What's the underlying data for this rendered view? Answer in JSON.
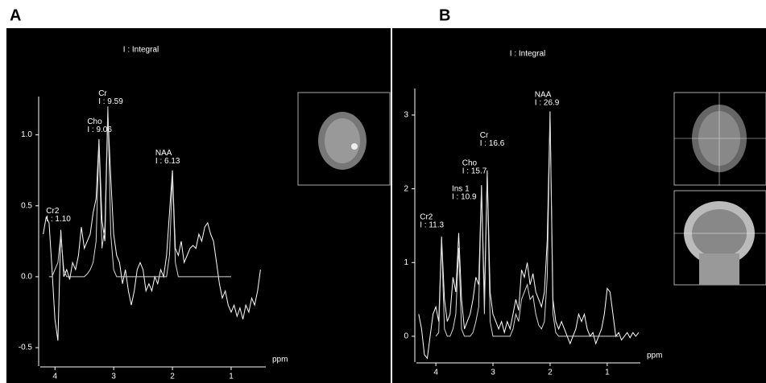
{
  "chart_data": [
    {
      "type": "line",
      "panel": "A",
      "title": "I : Integral",
      "x_label": "ppm",
      "x": [
        4.2,
        4.15,
        4.1,
        4.05,
        4,
        3.95,
        3.9,
        3.85,
        3.8,
        3.75,
        3.7,
        3.65,
        3.6,
        3.55,
        3.5,
        3.45,
        3.4,
        3.35,
        3.3,
        3.25,
        3.2,
        3.15,
        3.1,
        3.05,
        3,
        2.95,
        2.9,
        2.85,
        2.8,
        2.75,
        2.7,
        2.65,
        2.6,
        2.55,
        2.5,
        2.45,
        2.4,
        2.35,
        2.3,
        2.25,
        2.2,
        2.15,
        2.1,
        2.05,
        2,
        1.95,
        1.9,
        1.85,
        1.8,
        1.75,
        1.7,
        1.65,
        1.6,
        1.55,
        1.5,
        1.45,
        1.4,
        1.35,
        1.3,
        1.25,
        1.2,
        1.15,
        1.1,
        1.05,
        1,
        0.95,
        0.9,
        0.85,
        0.8,
        0.75,
        0.7,
        0.65,
        0.6,
        0.55,
        0.5
      ],
      "series": [
        {
          "color": "#ffffff",
          "values": [
            0.3,
            0.42,
            0.38,
            0.05,
            -0.3,
            -0.45,
            0.33,
            0,
            0.05,
            -0.02,
            0.1,
            0.05,
            0.15,
            0.35,
            0.2,
            0.25,
            0.3,
            0.45,
            0.55,
            0.97,
            0.4,
            0.25,
            1.15,
            0.7,
            0.3,
            0.15,
            0.1,
            -0.05,
            0.05,
            -0.1,
            -0.2,
            -0.1,
            0.05,
            0.1,
            0.05,
            -0.1,
            -0.05,
            -0.1,
            0,
            -0.05,
            0.05,
            0,
            0.15,
            0.45,
            0.75,
            0.2,
            0.15,
            0.25,
            0.1,
            0.15,
            0.2,
            0.22,
            0.2,
            0.3,
            0.25,
            0.35,
            0.38,
            0.3,
            0.25,
            0.1,
            -0.05,
            -0.15,
            -0.1,
            -0.2,
            -0.25,
            -0.2,
            -0.28,
            -0.22,
            -0.3,
            -0.2,
            -0.25,
            -0.15,
            -0.2,
            -0.1,
            0.05
          ]
        },
        {
          "color": "#d8d8d8",
          "values": [
            null,
            null,
            0,
            0,
            0.05,
            0.1,
            0.3,
            0.05,
            0,
            0,
            0,
            0,
            0,
            0,
            0,
            0.02,
            0.05,
            0.1,
            0.25,
            0.95,
            0.2,
            0.35,
            1.2,
            0.3,
            0.05,
            0,
            0,
            0,
            0,
            0,
            0,
            0,
            0,
            0,
            0,
            0,
            0,
            0,
            0,
            0,
            0,
            0,
            0,
            0.15,
            0.72,
            0.1,
            0,
            0,
            0,
            0,
            0,
            0,
            0,
            0,
            0,
            0,
            0,
            0,
            0,
            0,
            0,
            0,
            0,
            0,
            0,
            null,
            null,
            null,
            null,
            null,
            null,
            null,
            null,
            null,
            null
          ]
        }
      ],
      "xlim": [
        4.25,
        0.41
      ],
      "xticks": [
        4,
        3,
        2,
        1
      ],
      "ylim": [
        -0.63,
        1.27
      ],
      "yticks": [
        -0.5,
        {
          "value": 0,
          "label": "0.0"
        },
        0.5,
        {
          "value": 1,
          "label": "1.0"
        }
      ],
      "annotations": [
        {
          "label": "Cr2",
          "integral": "I : 1.10",
          "x": 4.15,
          "y": 0.49
        },
        {
          "label": "Cho",
          "integral": "I : 9.06",
          "x": 3.45,
          "y": 1.12
        },
        {
          "label": "Cr",
          "integral": "I : 9.59",
          "x": 3.26,
          "y": 1.32
        },
        {
          "label": "NAA",
          "integral": "I : 6.13",
          "x": 2.29,
          "y": 0.9
        }
      ]
    },
    {
      "type": "line",
      "panel": "B",
      "title": "I : Integral",
      "x_label": "ppm",
      "x": [
        4.3,
        4.25,
        4.2,
        4.15,
        4.1,
        4.05,
        4,
        3.95,
        3.9,
        3.85,
        3.8,
        3.75,
        3.7,
        3.65,
        3.6,
        3.55,
        3.5,
        3.45,
        3.4,
        3.35,
        3.3,
        3.25,
        3.2,
        3.15,
        3.1,
        3.05,
        3,
        2.95,
        2.9,
        2.85,
        2.8,
        2.75,
        2.7,
        2.65,
        2.6,
        2.55,
        2.5,
        2.45,
        2.4,
        2.35,
        2.3,
        2.25,
        2.2,
        2.15,
        2.1,
        2.05,
        2,
        1.95,
        1.9,
        1.85,
        1.8,
        1.75,
        1.7,
        1.65,
        1.6,
        1.55,
        1.5,
        1.45,
        1.4,
        1.35,
        1.3,
        1.25,
        1.2,
        1.15,
        1.1,
        1.05,
        1,
        0.95,
        0.9,
        0.85,
        0.8,
        0.75,
        0.7,
        0.65,
        0.6,
        0.55,
        0.5,
        0.45
      ],
      "series": [
        {
          "color": "#ffffff",
          "values": [
            0.3,
            0.1,
            -0.25,
            -0.3,
            0,
            0.3,
            0.4,
            0.2,
            1.35,
            0.5,
            0.2,
            0.3,
            0.8,
            0.6,
            1.4,
            0.5,
            0.1,
            0.2,
            0.3,
            0.5,
            0.8,
            0.7,
            2.05,
            0.5,
            2.25,
            0.6,
            0.3,
            0.2,
            0.1,
            0.2,
            0.05,
            0.2,
            0.1,
            0.3,
            0.5,
            0.35,
            0.9,
            0.8,
            1,
            0.7,
            0.85,
            0.6,
            0.5,
            0.4,
            0.6,
            1.3,
            3.05,
            0.5,
            0.2,
            0.1,
            0.2,
            0.1,
            0,
            -0.1,
            0,
            0.1,
            0.3,
            0.2,
            0.3,
            0.1,
            0,
            0.05,
            -0.1,
            0,
            0.1,
            0.3,
            0.65,
            0.6,
            0.3,
            0,
            0.05,
            -0.05,
            0,
            0.05,
            -0.02,
            0.05,
            0,
            0.05
          ]
        },
        {
          "color": "#d8d8d8",
          "values": [
            null,
            null,
            null,
            null,
            null,
            null,
            0,
            0.05,
            1.3,
            0.1,
            0,
            0,
            0.1,
            0.3,
            1.2,
            0.1,
            0,
            0,
            0,
            0.05,
            0.2,
            0.4,
            2,
            0.3,
            2.2,
            0.2,
            0,
            0,
            0,
            0,
            0,
            0,
            0,
            0.1,
            0.3,
            0.2,
            0.5,
            0.6,
            0.7,
            0.5,
            0.55,
            0.3,
            0.15,
            0.1,
            0.2,
            0.8,
            3,
            0.3,
            0.05,
            0,
            0,
            0,
            0,
            0,
            0,
            0,
            0,
            0,
            0,
            0,
            0,
            0,
            0,
            0,
            0,
            0,
            0,
            0,
            0,
            0,
            0,
            null,
            null,
            null,
            null,
            null,
            null,
            null
          ]
        }
      ],
      "xlim": [
        4.34,
        0.42
      ],
      "xticks": [
        4,
        3,
        2,
        1
      ],
      "ylim": [
        -0.35,
        3.36
      ],
      "yticks": [
        0,
        1,
        2,
        3
      ],
      "annotations": [
        {
          "label": "Cr2",
          "integral": "I : 11.3",
          "x": 4.28,
          "y": 1.67
        },
        {
          "label": "Ins 1",
          "integral": "I : 10.9",
          "x": 3.72,
          "y": 2.05
        },
        {
          "label": "Cho",
          "integral": "I : 15.7",
          "x": 3.54,
          "y": 2.4
        },
        {
          "label": "Cr",
          "integral": "I : 16.6",
          "x": 3.23,
          "y": 2.78
        },
        {
          "label": "NAA",
          "integral": "I : 26.9",
          "x": 2.27,
          "y": 3.33
        }
      ]
    }
  ]
}
